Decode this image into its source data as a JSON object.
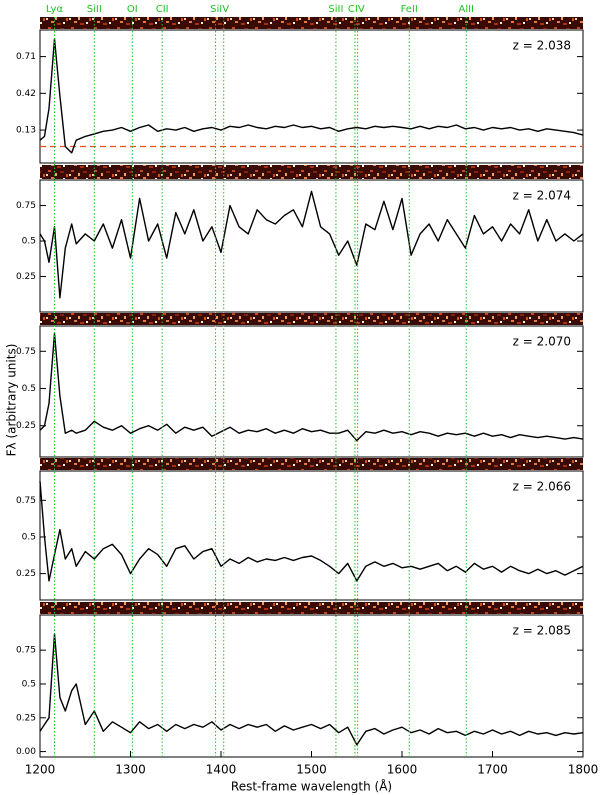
{
  "y_label": "Fλ (arbitrary units)",
  "spectral_lines": [
    {
      "label": "Lyα",
      "wavelengths": [
        1216
      ]
    },
    {
      "label": "SiII",
      "wavelengths": [
        1260
      ]
    },
    {
      "label": "OI",
      "wavelengths": [
        1302
      ]
    },
    {
      "label": "CII",
      "wavelengths": [
        1335
      ]
    },
    {
      "label": "SiIV",
      "wavelengths": [
        1394,
        1403
      ]
    },
    {
      "label": "SiII",
      "wavelengths": [
        1527
      ]
    },
    {
      "label": "CIV",
      "wavelengths": [
        1548,
        1551
      ]
    },
    {
      "label": "FeII",
      "wavelengths": [
        1608
      ]
    },
    {
      "label": "AlII",
      "wavelengths": [
        1671
      ]
    }
  ],
  "chart_data": [
    {
      "type": "line",
      "annotation": "z = 2.038",
      "color": "#000000",
      "xlim": [
        1200,
        1800
      ],
      "ylim": [
        -0.13,
        0.92
      ],
      "yticks": [
        0.13,
        0.42,
        0.71
      ],
      "reference_line": 0,
      "reference_color": "#e8501e",
      "x": [
        1200,
        1205,
        1210,
        1216,
        1222,
        1228,
        1235,
        1240,
        1250,
        1260,
        1270,
        1280,
        1290,
        1300,
        1310,
        1320,
        1330,
        1340,
        1350,
        1360,
        1370,
        1380,
        1390,
        1400,
        1410,
        1420,
        1430,
        1440,
        1450,
        1460,
        1470,
        1480,
        1490,
        1500,
        1510,
        1520,
        1530,
        1540,
        1550,
        1560,
        1570,
        1580,
        1590,
        1600,
        1610,
        1620,
        1630,
        1640,
        1650,
        1660,
        1670,
        1680,
        1690,
        1700,
        1710,
        1720,
        1730,
        1740,
        1750,
        1760,
        1770,
        1780,
        1790,
        1800
      ],
      "values": [
        0.05,
        0.08,
        0.3,
        0.85,
        0.4,
        0.0,
        -0.05,
        0.05,
        0.08,
        0.1,
        0.12,
        0.13,
        0.15,
        0.12,
        0.15,
        0.17,
        0.12,
        0.14,
        0.13,
        0.15,
        0.12,
        0.14,
        0.15,
        0.13,
        0.16,
        0.15,
        0.17,
        0.15,
        0.14,
        0.16,
        0.15,
        0.17,
        0.15,
        0.16,
        0.14,
        0.15,
        0.12,
        0.14,
        0.15,
        0.14,
        0.16,
        0.15,
        0.16,
        0.15,
        0.14,
        0.16,
        0.14,
        0.16,
        0.15,
        0.17,
        0.14,
        0.15,
        0.13,
        0.15,
        0.14,
        0.15,
        0.13,
        0.14,
        0.12,
        0.14,
        0.13,
        0.12,
        0.11,
        0.09
      ]
    },
    {
      "type": "line",
      "annotation": "z = 2.074",
      "color": "#000000",
      "xlim": [
        1200,
        1800
      ],
      "ylim": [
        0,
        0.93
      ],
      "yticks": [
        0.25,
        0.5,
        0.75
      ],
      "x": [
        1200,
        1205,
        1210,
        1216,
        1222,
        1228,
        1235,
        1240,
        1250,
        1260,
        1270,
        1280,
        1290,
        1300,
        1310,
        1320,
        1330,
        1340,
        1350,
        1360,
        1370,
        1380,
        1390,
        1400,
        1410,
        1420,
        1430,
        1440,
        1450,
        1460,
        1470,
        1480,
        1490,
        1500,
        1510,
        1520,
        1530,
        1540,
        1550,
        1560,
        1570,
        1580,
        1590,
        1600,
        1610,
        1620,
        1630,
        1640,
        1650,
        1660,
        1670,
        1680,
        1690,
        1700,
        1710,
        1720,
        1730,
        1740,
        1750,
        1760,
        1770,
        1780,
        1790,
        1800
      ],
      "values": [
        0.55,
        0.5,
        0.35,
        0.6,
        0.1,
        0.45,
        0.62,
        0.48,
        0.55,
        0.5,
        0.62,
        0.45,
        0.65,
        0.38,
        0.8,
        0.5,
        0.62,
        0.38,
        0.7,
        0.55,
        0.72,
        0.5,
        0.6,
        0.42,
        0.75,
        0.6,
        0.55,
        0.72,
        0.65,
        0.62,
        0.68,
        0.72,
        0.6,
        0.85,
        0.6,
        0.55,
        0.4,
        0.5,
        0.33,
        0.62,
        0.58,
        0.78,
        0.58,
        0.8,
        0.4,
        0.55,
        0.62,
        0.5,
        0.65,
        0.55,
        0.45,
        0.68,
        0.55,
        0.6,
        0.5,
        0.62,
        0.55,
        0.72,
        0.5,
        0.65,
        0.5,
        0.55,
        0.5,
        0.55
      ]
    },
    {
      "type": "line",
      "annotation": "z = 2.070",
      "color": "#000000",
      "xlim": [
        1200,
        1800
      ],
      "ylim": [
        0.04,
        0.92
      ],
      "yticks": [
        0.25,
        0.5,
        0.75
      ],
      "x": [
        1200,
        1205,
        1210,
        1216,
        1222,
        1228,
        1235,
        1240,
        1250,
        1260,
        1270,
        1280,
        1290,
        1300,
        1310,
        1320,
        1330,
        1340,
        1350,
        1360,
        1370,
        1380,
        1390,
        1400,
        1410,
        1420,
        1430,
        1440,
        1450,
        1460,
        1470,
        1480,
        1490,
        1500,
        1510,
        1520,
        1530,
        1540,
        1550,
        1560,
        1570,
        1580,
        1590,
        1600,
        1610,
        1620,
        1630,
        1640,
        1650,
        1660,
        1670,
        1680,
        1690,
        1700,
        1710,
        1720,
        1730,
        1740,
        1750,
        1760,
        1770,
        1780,
        1790,
        1800
      ],
      "values": [
        0.22,
        0.25,
        0.4,
        0.87,
        0.45,
        0.2,
        0.22,
        0.2,
        0.22,
        0.28,
        0.24,
        0.22,
        0.25,
        0.2,
        0.23,
        0.25,
        0.22,
        0.26,
        0.2,
        0.24,
        0.22,
        0.24,
        0.18,
        0.21,
        0.24,
        0.2,
        0.22,
        0.21,
        0.23,
        0.2,
        0.22,
        0.2,
        0.23,
        0.21,
        0.22,
        0.2,
        0.2,
        0.22,
        0.15,
        0.21,
        0.2,
        0.22,
        0.2,
        0.21,
        0.19,
        0.21,
        0.2,
        0.18,
        0.2,
        0.19,
        0.2,
        0.18,
        0.2,
        0.18,
        0.19,
        0.17,
        0.19,
        0.18,
        0.17,
        0.18,
        0.17,
        0.16,
        0.17,
        0.16
      ]
    },
    {
      "type": "line",
      "annotation": "z = 2.066",
      "color": "#000000",
      "xlim": [
        1200,
        1800
      ],
      "ylim": [
        0.07,
        0.95
      ],
      "yticks": [
        0.25,
        0.5,
        0.75
      ],
      "x": [
        1200,
        1205,
        1210,
        1216,
        1222,
        1228,
        1235,
        1240,
        1250,
        1260,
        1270,
        1280,
        1290,
        1300,
        1310,
        1320,
        1330,
        1340,
        1350,
        1360,
        1370,
        1380,
        1390,
        1400,
        1410,
        1420,
        1430,
        1440,
        1450,
        1460,
        1470,
        1480,
        1490,
        1500,
        1510,
        1520,
        1530,
        1540,
        1550,
        1560,
        1570,
        1580,
        1590,
        1600,
        1610,
        1620,
        1630,
        1640,
        1650,
        1660,
        1670,
        1680,
        1690,
        1700,
        1710,
        1720,
        1730,
        1740,
        1750,
        1760,
        1770,
        1780,
        1790,
        1800
      ],
      "values": [
        0.88,
        0.5,
        0.2,
        0.38,
        0.55,
        0.35,
        0.42,
        0.3,
        0.4,
        0.35,
        0.42,
        0.45,
        0.38,
        0.25,
        0.35,
        0.42,
        0.38,
        0.3,
        0.42,
        0.44,
        0.35,
        0.4,
        0.42,
        0.3,
        0.35,
        0.32,
        0.36,
        0.33,
        0.35,
        0.34,
        0.36,
        0.34,
        0.36,
        0.37,
        0.34,
        0.3,
        0.25,
        0.32,
        0.2,
        0.3,
        0.33,
        0.3,
        0.32,
        0.29,
        0.3,
        0.28,
        0.3,
        0.32,
        0.27,
        0.3,
        0.26,
        0.32,
        0.28,
        0.3,
        0.26,
        0.3,
        0.27,
        0.25,
        0.28,
        0.25,
        0.27,
        0.24,
        0.27,
        0.3
      ]
    },
    {
      "type": "line",
      "annotation": "z = 2.085",
      "color": "#000000",
      "xlim": [
        1200,
        1800
      ],
      "ylim": [
        -0.04,
        1.01
      ],
      "yticks": [
        {
          "value": 0,
          "label": "0.00"
        },
        0.25,
        0.5,
        0.75
      ],
      "xticks": [
        1200,
        1300,
        1400,
        1500,
        1600,
        1700,
        1800
      ],
      "x_label": "Rest-frame wavelength (Å)",
      "x": [
        1200,
        1205,
        1210,
        1216,
        1222,
        1228,
        1235,
        1240,
        1250,
        1260,
        1270,
        1280,
        1290,
        1300,
        1310,
        1320,
        1330,
        1340,
        1350,
        1360,
        1370,
        1380,
        1390,
        1400,
        1410,
        1420,
        1430,
        1440,
        1450,
        1460,
        1470,
        1480,
        1490,
        1500,
        1510,
        1520,
        1530,
        1540,
        1550,
        1560,
        1570,
        1580,
        1590,
        1600,
        1610,
        1620,
        1630,
        1640,
        1650,
        1660,
        1670,
        1680,
        1690,
        1700,
        1710,
        1720,
        1730,
        1740,
        1750,
        1760,
        1770,
        1780,
        1790,
        1800
      ],
      "values": [
        0.15,
        0.2,
        0.25,
        0.87,
        0.4,
        0.3,
        0.45,
        0.5,
        0.2,
        0.3,
        0.15,
        0.22,
        0.18,
        0.14,
        0.22,
        0.17,
        0.2,
        0.15,
        0.2,
        0.17,
        0.2,
        0.18,
        0.22,
        0.16,
        0.2,
        0.17,
        0.2,
        0.18,
        0.2,
        0.15,
        0.19,
        0.16,
        0.18,
        0.2,
        0.17,
        0.2,
        0.14,
        0.18,
        0.05,
        0.15,
        0.17,
        0.13,
        0.16,
        0.18,
        0.14,
        0.16,
        0.13,
        0.17,
        0.14,
        0.15,
        0.12,
        0.15,
        0.13,
        0.16,
        0.13,
        0.15,
        0.12,
        0.15,
        0.13,
        0.14,
        0.12,
        0.14,
        0.13,
        0.14
      ]
    }
  ]
}
